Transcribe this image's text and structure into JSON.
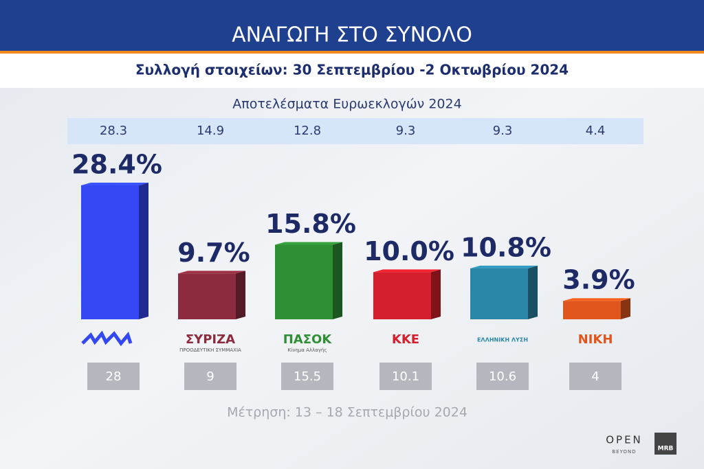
{
  "chart_data": {
    "type": "bar",
    "title": "ΑΝΑΓΩΓΗ ΣΤΟ ΣΥΝΟΛΟ",
    "subtitle": "Συλλογή στοιχείων: 30 Σεπτεμβρίου  -2 Οκτωβρίου 2024",
    "categories": [
      null,
      "ΣΥΡΙΖΑ",
      "ΠΑΣΟΚ",
      "ΚΚΕ",
      "ΕΛΛΗΝΙΚΗ ΛΥΣΗ",
      "ΝΙΚΗ"
    ],
    "category_notes": [
      null,
      "ΠΡΟΟΔΕΥΤΙΚΗ ΣΥΜΜΑΧΙΑ",
      "Κίνημα Αλλαγής",
      null,
      null,
      null
    ],
    "values": [
      28.4,
      9.7,
      15.8,
      10.0,
      10.8,
      3.9
    ],
    "value_labels": [
      "28.4%",
      "9.7%",
      "15.8%",
      "10.0%",
      "10.8%",
      "3.9%"
    ],
    "colors": [
      "#3347f2",
      "#8c2b3e",
      "#2f8f34",
      "#d61f2c",
      "#2a86a6",
      "#e0561c"
    ],
    "reference_rows": [
      {
        "title": "Αποτελέσματα Ευρωεκλογών 2024",
        "values": [
          28.3,
          14.9,
          12.8,
          9.3,
          9.3,
          4.4
        ]
      },
      {
        "title": "Μέτρηση: 13 – 18 Σεπτεμβρίου 2024",
        "values": [
          28,
          9,
          15.5,
          10.1,
          10.6,
          4
        ]
      }
    ],
    "branding": [
      "OPEN",
      "BEYOND",
      "MRB"
    ]
  }
}
